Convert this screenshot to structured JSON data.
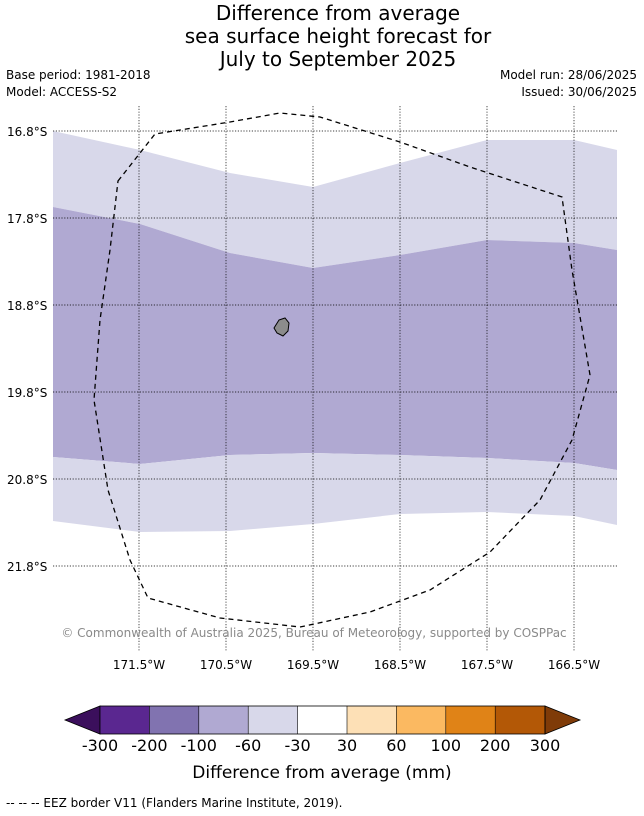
{
  "title_lines": [
    "Difference from average",
    "sea surface height forecast for",
    "July to September 2025"
  ],
  "base_period": "Base period: 1981-2018",
  "model": "Model: ACCESS-S2",
  "model_run": "Model run: 28/06/2025",
  "issued": "Issued: 30/06/2025",
  "map": {
    "lat_ticks": [
      "16.8°S",
      "17.8°S",
      "18.8°S",
      "19.8°S",
      "20.8°S",
      "21.8°S"
    ],
    "lon_ticks": [
      "171.5°W",
      "170.5°W",
      "169.5°W",
      "168.5°W",
      "167.5°W",
      "166.5°W"
    ],
    "copyright": "© Commonwealth of Australia 2025, Bureau of Meteorology, supported by COSPPac",
    "land_color": "#8c8c8c",
    "border_style": "dashed"
  },
  "colorbar": {
    "labels": [
      "-300",
      "-200",
      "-100",
      "-60",
      "-30",
      "30",
      "60",
      "100",
      "200",
      "300"
    ],
    "colors": [
      "#3b0f5c",
      "#5a2790",
      "#8173b0",
      "#b0a9d2",
      "#d8d8ea",
      "#ffffff",
      "#fde0b6",
      "#fbb961",
      "#e08317",
      "#b35806",
      "#7f3b08"
    ],
    "label": "Difference from average (mm)"
  },
  "footer": "--  --  -- EEZ border V11 (Flanders Marine Institute, 2019)."
}
